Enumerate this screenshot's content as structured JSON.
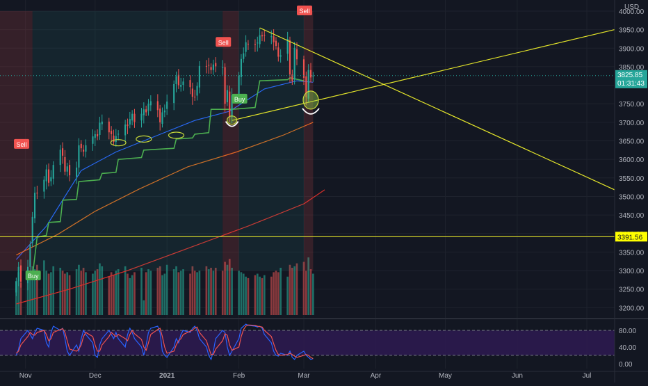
{
  "currency": "USD",
  "colors": {
    "background": "#131722",
    "axis_text": "#b2b5be",
    "grid": "#1e222d",
    "bull": "#26a69a",
    "bear": "#ef5350",
    "volume_bull": "#1f6e66",
    "volume_bear": "#8b3a3e",
    "ema_fast": "#2962ff",
    "ma_mid": "#e06a1b",
    "ma_slow": "#d92f2a",
    "supertrend": "#4caf50",
    "trendline": "#e5e62a",
    "sell": "#f05350",
    "buy": "#4caf50",
    "stoch_k": "#2962ff",
    "stoch_d": "#ef5350",
    "stoch_band": "#2c1a4f",
    "last_price_badge": "#26a69a",
    "level_badge": "#ffff00"
  },
  "last_price": {
    "value": "3825.85",
    "countdown": "01:31:43"
  },
  "horizontal_level": {
    "value": "3391.56"
  },
  "signals": [
    {
      "type": "sell",
      "label": "Sell",
      "date": "2020-10-30",
      "price": 3640
    },
    {
      "type": "buy",
      "label": "Buy",
      "date": "2020-11-04",
      "price": 3285
    },
    {
      "type": "sell",
      "label": "Sell",
      "date": "2021-01-25",
      "price": 3915
    },
    {
      "type": "buy",
      "label": "Buy",
      "date": "2021-02-01",
      "price": 3762
    },
    {
      "type": "sell",
      "label": "Sell",
      "date": "2021-03-01",
      "price": 4000
    }
  ],
  "chart_data": {
    "type": "line",
    "title": "",
    "price_axis": {
      "ticks": [
        "4000.00",
        "3950.00",
        "3900.00",
        "3850.00",
        "3800.00",
        "3750.00",
        "3700.00",
        "3650.00",
        "3600.00",
        "3550.00",
        "3500.00",
        "3450.00",
        "3400.00",
        "3350.00",
        "3300.00",
        "3250.00",
        "3200.00"
      ],
      "range": [
        3180,
        4030
      ]
    },
    "time_axis": {
      "labels": [
        "Nov",
        "Dec",
        "2021",
        "Feb",
        "Mar",
        "Apr",
        "May",
        "Jun",
        "Jul"
      ],
      "label_dates": [
        "2020-11-01",
        "2020-12-01",
        "2021-01-01",
        "2021-02-01",
        "2021-03-01",
        "2021-04-01",
        "2021-05-01",
        "2021-06-01",
        "2021-07-01"
      ],
      "range": [
        "2020-10-21",
        "2021-07-13"
      ]
    },
    "candles": {
      "start": "2020-10-28",
      "closes": [
        3271,
        3310,
        3270,
        3310,
        3370,
        3445,
        3510,
        3509,
        3545,
        3573,
        3537,
        3552,
        3585,
        3626,
        3610,
        3567,
        3581,
        3557,
        3578,
        3638,
        3630,
        3621,
        3638,
        3662,
        3668,
        3662,
        3699,
        3702,
        3673,
        3668,
        3647,
        3663,
        3669,
        3694,
        3690,
        3709,
        3723,
        3701,
        3723,
        3735,
        3727,
        3750,
        3757,
        3733,
        3700,
        3727,
        3732,
        3756,
        3803,
        3824,
        3800,
        3801,
        3810,
        3795,
        3769,
        3768,
        3798,
        3852,
        3851,
        3853,
        3841,
        3856,
        3851,
        3849,
        3750,
        3787,
        3714,
        3773,
        3826,
        3871,
        3886,
        3916,
        3911,
        3909,
        3915,
        3935,
        3932,
        3934,
        3932,
        3916,
        3906,
        3877,
        3881,
        3925,
        3829,
        3811,
        3901,
        3870,
        3820,
        3768,
        3841,
        3821,
        3826
      ]
    },
    "volume_bars": {
      "values": [
        2.3,
        2.9,
        2.2,
        2.6,
        3.0,
        3.3,
        3.1,
        3.4,
        3.7,
        3.0,
        2.8,
        2.9,
        3.3,
        3.2,
        3.0,
        2.8,
        2.9,
        2.7,
        3.1,
        3.4,
        3.0,
        3.2,
        2.9,
        2.8,
        3.0,
        3.1,
        3.5,
        3.3,
        2.6,
        2.9,
        2.7,
        3.0,
        3.1,
        3.3,
        2.8,
        2.5,
        2.7,
        2.9,
        3.2,
        1.0,
        2.9,
        3.1,
        3.0,
        3.2,
        3.3,
        2.7,
        2.8,
        3.4,
        3.1,
        3.3,
        2.9,
        3.0,
        3.1,
        2.8,
        3.3,
        3.0,
        2.9,
        3.0,
        3.3,
        3.1,
        3.2,
        3.0,
        3.2,
        3.0,
        3.6,
        3.4,
        3.8,
        3.2,
        3.0,
        2.9,
        2.8,
        2.6,
        2.5,
        2.7,
        2.8,
        2.6,
        2.5,
        2.7,
        2.6,
        2.9,
        3.0,
        2.9,
        3.2,
        2.6,
        3.4,
        3.2,
        3.3,
        3.5,
        3.6,
        3.0,
        3.9,
        3.1,
        2.8
      ]
    },
    "series": [
      {
        "name": "",
        "kind": "ema_fast",
        "points": [
          [
            "2020-10-28",
            3330
          ],
          [
            "2020-11-10",
            3420
          ],
          [
            "2020-11-25",
            3570
          ],
          [
            "2020-12-10",
            3620
          ],
          [
            "2020-12-28",
            3665
          ],
          [
            "2021-01-13",
            3705
          ],
          [
            "2021-01-28",
            3730
          ],
          [
            "2021-02-12",
            3790
          ],
          [
            "2021-02-26",
            3812
          ],
          [
            "2021-03-05",
            3808
          ]
        ]
      },
      {
        "name": "",
        "kind": "ma_mid",
        "points": [
          [
            "2020-10-28",
            3342
          ],
          [
            "2020-11-15",
            3398
          ],
          [
            "2020-12-01",
            3460
          ],
          [
            "2020-12-20",
            3520
          ],
          [
            "2021-01-10",
            3580
          ],
          [
            "2021-01-31",
            3620
          ],
          [
            "2021-02-20",
            3665
          ],
          [
            "2021-03-05",
            3700
          ]
        ]
      },
      {
        "name": "",
        "kind": "ma_slow",
        "points": [
          [
            "2020-10-28",
            3210
          ],
          [
            "2020-11-20",
            3250
          ],
          [
            "2020-12-15",
            3300
          ],
          [
            "2021-01-10",
            3360
          ],
          [
            "2021-02-05",
            3420
          ],
          [
            "2021-03-01",
            3480
          ],
          [
            "2021-03-10",
            3518
          ]
        ]
      },
      {
        "name": "",
        "kind": "supertrend",
        "points": [
          [
            "2020-11-04",
            3285
          ],
          [
            "2020-11-06",
            3390
          ],
          [
            "2020-11-10",
            3395
          ],
          [
            "2020-11-11",
            3430
          ],
          [
            "2020-11-16",
            3432
          ],
          [
            "2020-11-17",
            3490
          ],
          [
            "2020-11-23",
            3492
          ],
          [
            "2020-11-24",
            3540
          ],
          [
            "2020-12-03",
            3545
          ],
          [
            "2020-12-04",
            3562
          ],
          [
            "2020-12-10",
            3565
          ],
          [
            "2020-12-11",
            3600
          ],
          [
            "2020-12-21",
            3605
          ],
          [
            "2020-12-22",
            3625
          ],
          [
            "2021-01-04",
            3630
          ],
          [
            "2021-01-05",
            3655
          ],
          [
            "2021-01-12",
            3658
          ],
          [
            "2021-01-13",
            3668
          ],
          [
            "2021-01-19",
            3672
          ],
          [
            "2021-01-20",
            3735
          ],
          [
            "2021-01-29",
            3735
          ],
          [
            "2021-02-08",
            3740
          ],
          [
            "2021-02-10",
            3812
          ],
          [
            "2021-02-22",
            3815
          ],
          [
            "2021-02-23",
            3820
          ],
          [
            "2021-03-01",
            3812
          ]
        ]
      },
      {
        "name": "",
        "kind": "trendline",
        "points": [
          [
            "2021-01-29",
            3705
          ],
          [
            "2021-07-13",
            3950
          ]
        ]
      },
      {
        "name": "",
        "kind": "trendline",
        "points": [
          [
            "2021-02-10",
            3955
          ],
          [
            "2021-07-13",
            3518
          ]
        ]
      },
      {
        "name": "",
        "kind": "level",
        "points": [
          [
            "2020-10-21",
            3391.56
          ],
          [
            "2021-07-13",
            3391.56
          ]
        ]
      }
    ],
    "stochastic": {
      "ticks": [
        "80.00",
        "40.00",
        "0.00"
      ],
      "range": [
        -12,
        100
      ],
      "band": [
        20,
        80
      ],
      "k": [
        20,
        35,
        60,
        80,
        70,
        60,
        75,
        85,
        80,
        50,
        40,
        75,
        90,
        80,
        85,
        60,
        30,
        20,
        45,
        30,
        60,
        80,
        70,
        50,
        20,
        15,
        45,
        60,
        80,
        70,
        60,
        75,
        60,
        40,
        70,
        85,
        75,
        60,
        40,
        20,
        45,
        75,
        85,
        90,
        75,
        30,
        20,
        15,
        40,
        60,
        50,
        70,
        80,
        75,
        85,
        90,
        80,
        60,
        40,
        20,
        10,
        30,
        60,
        80,
        75,
        40,
        20,
        30,
        60,
        85,
        90,
        95,
        92,
        90,
        88,
        90,
        85,
        70,
        50,
        30,
        20,
        18,
        25,
        20,
        30,
        15,
        10,
        20,
        30,
        20,
        15,
        10,
        12
      ],
      "d": [
        25,
        30,
        45,
        65,
        75,
        70,
        68,
        75,
        80,
        70,
        55,
        60,
        75,
        82,
        84,
        75,
        55,
        35,
        30,
        35,
        45,
        65,
        75,
        65,
        45,
        30,
        30,
        45,
        65,
        75,
        70,
        65,
        70,
        60,
        55,
        70,
        80,
        72,
        58,
        40,
        32,
        50,
        70,
        82,
        85,
        65,
        40,
        25,
        30,
        45,
        55,
        60,
        70,
        78,
        80,
        86,
        88,
        75,
        55,
        38,
        22,
        22,
        35,
        55,
        72,
        68,
        45,
        32,
        40,
        65,
        82,
        90,
        93,
        92,
        90,
        89,
        88,
        80,
        65,
        48,
        32,
        22,
        20,
        22,
        25,
        22,
        18,
        15,
        20,
        22,
        20,
        15,
        12
      ]
    }
  }
}
